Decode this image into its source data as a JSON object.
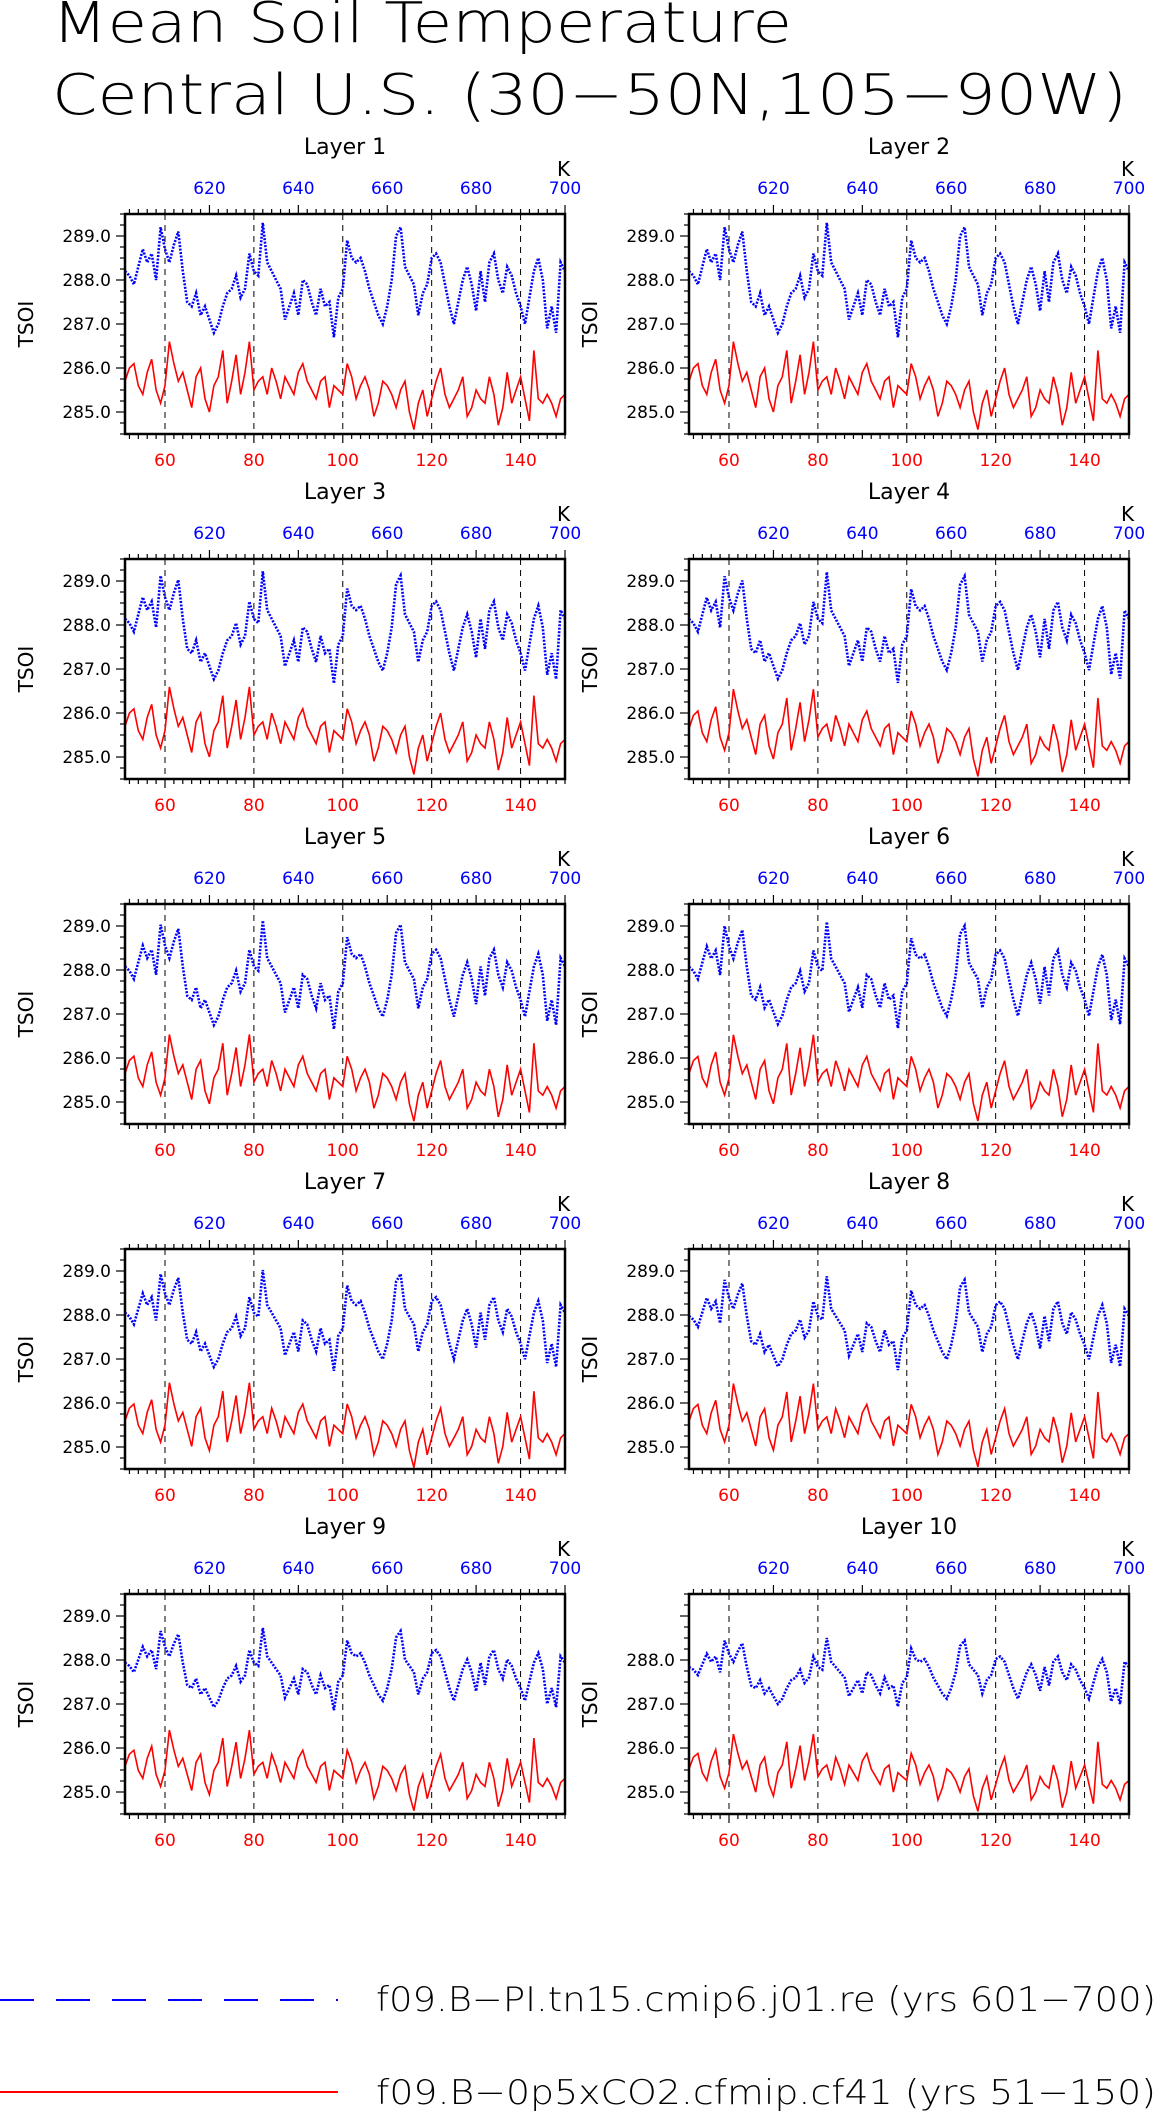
{
  "figure": {
    "title_line1": "Mean Soil Temperature",
    "title_line2": "Central U.S. (30−50N,105−90W)",
    "ylabel": "TSOI",
    "top_axis_unit": "K",
    "legend": [
      {
        "label": "f09.B−PI.tn15.cmip6.j01.re (yrs 601−700)",
        "color": "#0000ff",
        "style": "dashed"
      },
      {
        "label": "f09.B−0p5xCO2.cfmip.cf41 (yrs 51−150)",
        "color": "#ff0000",
        "style": "solid"
      }
    ]
  },
  "colors": {
    "pi_series": "#0000ff",
    "co2_series": "#ff0000",
    "axes": "#000000"
  },
  "chart_data": {
    "type": "line",
    "x_bottom": {
      "ticks": [
        60,
        80,
        100,
        120,
        140
      ],
      "range": [
        51,
        150
      ],
      "color": "#ff0000"
    },
    "x_top": {
      "ticks": [
        620,
        640,
        660,
        680,
        700
      ],
      "range": [
        601,
        700
      ],
      "color": "#0000ff"
    },
    "y_ticks": [
      285.0,
      286.0,
      287.0,
      288.0,
      289.0
    ],
    "ylim": [
      284.5,
      289.5
    ],
    "vertical_dashed_lines_at": [
      60,
      80,
      100,
      120,
      140
    ],
    "panels": [
      {
        "title": "Layer 1",
        "pi_base": 287.8,
        "co2_base": 285.5,
        "y_ticks": [
          285.0,
          286.0,
          287.0,
          288.0,
          289.0
        ],
        "scale": 1.0
      },
      {
        "title": "Layer 2",
        "pi_base": 287.8,
        "co2_base": 285.5,
        "y_ticks": [
          285.0,
          286.0,
          287.0,
          288.0,
          289.0
        ],
        "scale": 1.0
      },
      {
        "title": "Layer 3",
        "pi_base": 287.75,
        "co2_base": 285.5,
        "y_ticks": [
          285.0,
          286.0,
          287.0,
          288.0,
          289.0
        ],
        "scale": 0.98
      },
      {
        "title": "Layer 4",
        "pi_base": 287.75,
        "co2_base": 285.45,
        "y_ticks": [
          285.0,
          286.0,
          287.0,
          288.0,
          289.0
        ],
        "scale": 0.97
      },
      {
        "title": "Layer 5",
        "pi_base": 287.7,
        "co2_base": 285.45,
        "y_ticks": [
          285.0,
          286.0,
          287.0,
          288.0,
          289.0
        ],
        "scale": 0.95
      },
      {
        "title": "Layer 6",
        "pi_base": 287.7,
        "co2_base": 285.45,
        "y_ticks": [
          285.0,
          286.0,
          287.0,
          288.0,
          289.0
        ],
        "scale": 0.93
      },
      {
        "title": "Layer 7",
        "pi_base": 287.7,
        "co2_base": 285.4,
        "y_ticks": [
          285.0,
          286.0,
          287.0,
          288.0,
          289.0
        ],
        "scale": 0.88
      },
      {
        "title": "Layer 8",
        "pi_base": 287.65,
        "co2_base": 285.4,
        "y_ticks": [
          285.0,
          286.0,
          287.0,
          288.0,
          289.0
        ],
        "scale": 0.82
      },
      {
        "title": "Layer 9",
        "pi_base": 287.65,
        "co2_base": 285.4,
        "y_ticks": [
          285.0,
          286.0,
          287.0,
          288.0,
          289.0
        ],
        "scale": 0.72
      },
      {
        "title": "Layer 10",
        "pi_base": 287.6,
        "co2_base": 285.35,
        "y_ticks": [
          285.0,
          286.0,
          287.0,
          288.0
        ],
        "scale": 0.6
      }
    ],
    "pi_anomaly_layer1": [
      0.4,
      0.3,
      0.1,
      0.5,
      0.9,
      0.6,
      0.8,
      0.2,
      1.4,
      0.9,
      0.6,
      1.0,
      1.3,
      0.4,
      -0.3,
      -0.4,
      -0.1,
      -0.6,
      -0.4,
      -0.7,
      -1.0,
      -0.8,
      -0.4,
      -0.1,
      0.0,
      0.3,
      -0.2,
      0.0,
      0.8,
      0.4,
      0.3,
      1.5,
      0.6,
      0.4,
      0.2,
      0.0,
      -0.7,
      -0.4,
      -0.1,
      -0.6,
      0.2,
      0.1,
      -0.3,
      -0.6,
      0.0,
      -0.4,
      -0.3,
      -1.1,
      -0.2,
      0.0,
      1.1,
      0.7,
      0.6,
      0.7,
      0.4,
      0.0,
      -0.3,
      -0.6,
      -0.8,
      -0.4,
      0.2,
      1.2,
      1.4,
      0.5,
      0.3,
      0.1,
      -0.6,
      -0.1,
      0.1,
      0.7,
      0.8,
      0.6,
      0.1,
      -0.4,
      -0.8,
      -0.3,
      0.2,
      0.5,
      0.1,
      -0.5,
      0.4,
      -0.3,
      0.6,
      0.8,
      0.2,
      -0.1,
      0.5,
      0.3,
      -0.1,
      -0.4,
      -0.8,
      -0.2,
      0.4,
      0.7,
      0.2,
      -0.9,
      -0.4,
      -1.0,
      0.6,
      0.4
    ],
    "co2_anomaly_layer1": [
      0.2,
      0.5,
      0.6,
      0.1,
      -0.1,
      0.4,
      0.7,
      0.0,
      -0.3,
      0.1,
      1.1,
      0.6,
      0.2,
      0.4,
      0.0,
      -0.4,
      0.3,
      0.5,
      -0.2,
      -0.5,
      0.1,
      0.3,
      0.9,
      -0.3,
      0.2,
      0.8,
      -0.1,
      0.4,
      1.1,
      0.0,
      0.2,
      0.3,
      -0.1,
      0.5,
      0.2,
      -0.2,
      0.3,
      0.1,
      -0.1,
      0.4,
      0.6,
      0.2,
      0.0,
      -0.2,
      0.2,
      0.3,
      -0.4,
      0.1,
      0.0,
      -0.1,
      0.6,
      0.3,
      -0.2,
      0.1,
      0.3,
      0.0,
      -0.6,
      -0.3,
      0.2,
      0.1,
      -0.1,
      -0.4,
      0.0,
      0.2,
      -0.5,
      -0.9,
      -0.3,
      0.0,
      -0.6,
      -0.2,
      0.2,
      0.5,
      -0.1,
      -0.4,
      -0.2,
      0.0,
      0.3,
      -0.6,
      -0.4,
      0.0,
      -0.2,
      -0.3,
      0.3,
      -0.1,
      -0.8,
      -0.4,
      0.4,
      -0.3,
      0.0,
      0.3,
      -0.2,
      -0.7,
      0.9,
      -0.2,
      -0.3,
      -0.1,
      -0.3,
      -0.6,
      -0.2,
      -0.1
    ]
  }
}
